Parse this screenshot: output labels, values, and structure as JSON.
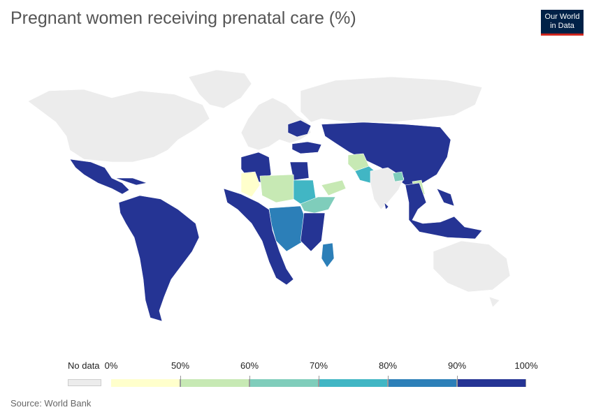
{
  "title": "Pregnant women receiving prenatal care (%)",
  "logo": {
    "line1": "Our World",
    "line2": "in Data",
    "bg_color": "#002147",
    "accent_color": "#ce261e"
  },
  "legend": {
    "no_data_label": "No data",
    "no_data_color": "#ececec",
    "tick_labels": [
      "0%",
      "50%",
      "60%",
      "70%",
      "80%",
      "90%",
      "100%"
    ],
    "bins": [
      {
        "from": 0,
        "to": 50,
        "color": "#ffffcc"
      },
      {
        "from": 50,
        "to": 60,
        "color": "#c7e9b4"
      },
      {
        "from": 60,
        "to": 70,
        "color": "#7fcdbb"
      },
      {
        "from": 70,
        "to": 80,
        "color": "#41b6c4"
      },
      {
        "from": 80,
        "to": 90,
        "color": "#2c7fb8"
      },
      {
        "from": 90,
        "to": 100,
        "color": "#253494"
      }
    ]
  },
  "source": "Source: World Bank",
  "chart_data": {
    "type": "choropleth",
    "title": "Pregnant women receiving prenatal care (%)",
    "unit": "%",
    "regions": [
      {
        "name": "North America",
        "bin": "no-data"
      },
      {
        "name": "Greenland",
        "bin": "no-data"
      },
      {
        "name": "Mexico & Central America",
        "bin": "90-100"
      },
      {
        "name": "South America",
        "bin": "90-100"
      },
      {
        "name": "Europe",
        "bin": "no-data"
      },
      {
        "name": "Ukraine",
        "bin": "90-100"
      },
      {
        "name": "Turkey",
        "bin": "90-100"
      },
      {
        "name": "Russia",
        "bin": "no-data"
      },
      {
        "name": "Central Asia & Mongolia & China",
        "bin": "90-100"
      },
      {
        "name": "North Africa (Algeria)",
        "bin": "90-100"
      },
      {
        "name": "Egypt",
        "bin": "90-100"
      },
      {
        "name": "Mali",
        "bin": "0-50"
      },
      {
        "name": "Niger / Chad",
        "bin": "50-60"
      },
      {
        "name": "Sudan",
        "bin": "70-80"
      },
      {
        "name": "Ethiopia / Somalia",
        "bin": "60-70"
      },
      {
        "name": "Central Africa",
        "bin": "80-90"
      },
      {
        "name": "East & Southern Africa",
        "bin": "90-100"
      },
      {
        "name": "Madagascar",
        "bin": "80-90"
      },
      {
        "name": "Yemen",
        "bin": "50-60"
      },
      {
        "name": "Afghanistan",
        "bin": "50-60"
      },
      {
        "name": "Pakistan",
        "bin": "70-80"
      },
      {
        "name": "India",
        "bin": "no-data"
      },
      {
        "name": "Bangladesh",
        "bin": "60-70"
      },
      {
        "name": "Laos",
        "bin": "50-60"
      },
      {
        "name": "Southeast Asia",
        "bin": "90-100"
      },
      {
        "name": "Australia",
        "bin": "no-data"
      }
    ]
  }
}
